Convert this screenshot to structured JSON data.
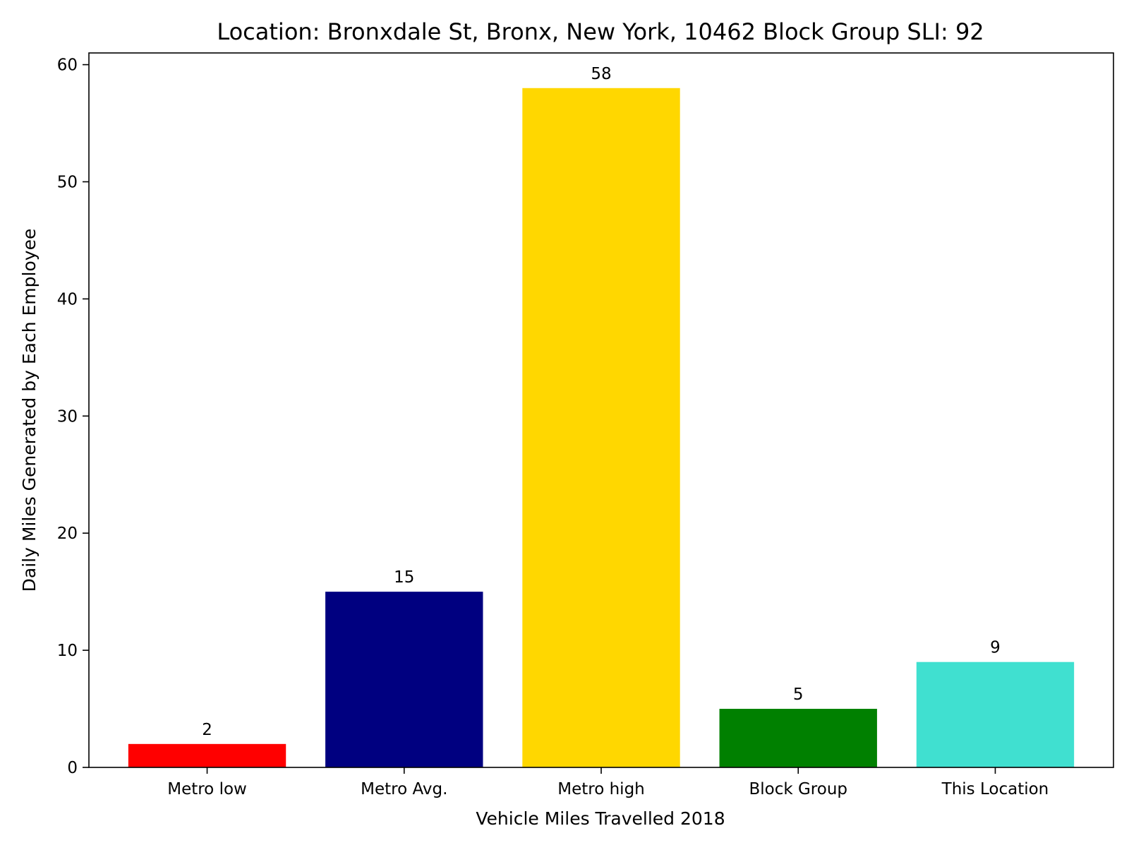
{
  "chart_data": {
    "type": "bar",
    "title": "Location: Bronxdale St, Bronx, New York, 10462 Block Group SLI: 92",
    "xlabel": "Vehicle Miles Travelled 2018",
    "ylabel": "Daily Miles Generated by Each Employee",
    "categories": [
      "Metro low",
      "Metro Avg.",
      "Metro high",
      "Block Group",
      "This Location"
    ],
    "values": [
      2,
      15,
      58,
      5,
      9
    ],
    "value_labels": [
      "2",
      "15",
      "58",
      "5",
      "9"
    ],
    "colors": [
      "#ff0000",
      "#000080",
      "#ffd700",
      "#008000",
      "#40e0d0"
    ],
    "ylim": [
      0,
      61
    ],
    "yticks": [
      0,
      10,
      20,
      30,
      40,
      50,
      60
    ],
    "ytick_labels": [
      "0",
      "10",
      "20",
      "30",
      "40",
      "50",
      "60"
    ],
    "grid": false,
    "legend": "none"
  }
}
